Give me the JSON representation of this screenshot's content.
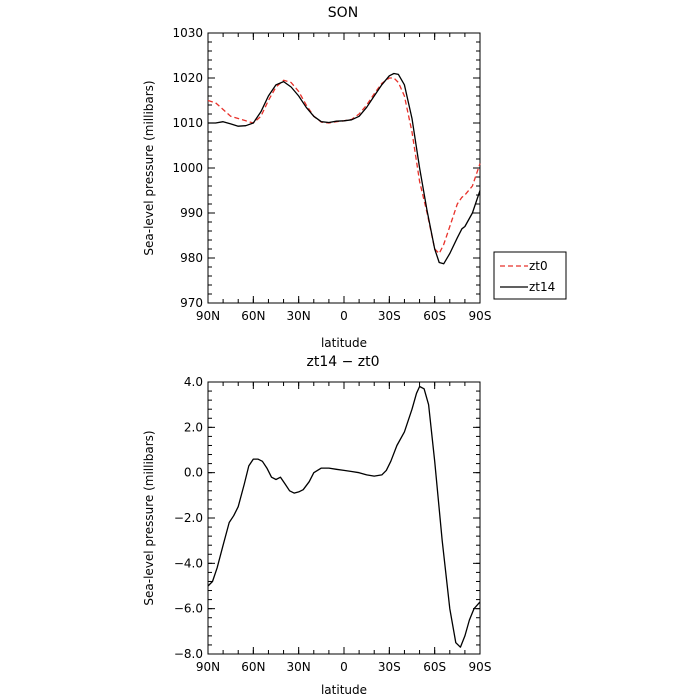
{
  "chart_data": [
    {
      "type": "line",
      "title": "SON",
      "xlabel": "latitude",
      "ylabel": "Sea-level pressure (millibars)",
      "xlim": [
        90,
        -90
      ],
      "ylim": [
        970,
        1030
      ],
      "x_tick_values": [
        90,
        60,
        30,
        0,
        -30,
        -60,
        -90
      ],
      "x_tick_labels": [
        "90N",
        "60N",
        "30N",
        "0",
        "30S",
        "60S",
        "90S"
      ],
      "y_ticks": [
        970,
        980,
        990,
        1000,
        1010,
        1020,
        1030
      ],
      "legend": "right",
      "series": [
        {
          "name": "zt0",
          "color": "#e8312a",
          "style": "dashed",
          "x": [
            90,
            85,
            80,
            75,
            70,
            65,
            60,
            55,
            50,
            45,
            40,
            35,
            30,
            25,
            20,
            15,
            10,
            5,
            0,
            -5,
            -10,
            -15,
            -20,
            -25,
            -30,
            -33,
            -36,
            -40,
            -45,
            -50,
            -55,
            -60,
            -63,
            -66,
            -70,
            -75,
            -78,
            -80,
            -85,
            -90
          ],
          "y": [
            1015,
            1014.5,
            1013,
            1011.5,
            1011,
            1010.5,
            1010,
            1011.5,
            1015,
            1018,
            1019.5,
            1019,
            1017,
            1014,
            1011.5,
            1010.2,
            1010,
            1010.3,
            1010.5,
            1010.8,
            1012,
            1014,
            1016.5,
            1018.8,
            1020,
            1020,
            1019,
            1016,
            1008,
            997,
            990,
            982,
            981,
            983,
            987,
            992,
            993.5,
            994,
            996,
            1001
          ]
        },
        {
          "name": "zt14",
          "color": "#000000",
          "style": "solid",
          "x": [
            90,
            85,
            80,
            75,
            70,
            65,
            60,
            55,
            50,
            45,
            40,
            35,
            30,
            25,
            20,
            15,
            10,
            5,
            0,
            -5,
            -10,
            -15,
            -20,
            -25,
            -30,
            -33,
            -36,
            -40,
            -45,
            -50,
            -55,
            -60,
            -63,
            -66,
            -70,
            -75,
            -78,
            -80,
            -85,
            -90
          ],
          "y": [
            1010,
            1010,
            1010.3,
            1009.8,
            1009.3,
            1009.4,
            1010,
            1012.5,
            1016,
            1018.5,
            1019.2,
            1018,
            1016,
            1013.5,
            1011.5,
            1010.3,
            1010.1,
            1010.4,
            1010.5,
            1010.7,
            1011.5,
            1013.5,
            1016,
            1018.5,
            1020.5,
            1021,
            1020.8,
            1018.5,
            1011,
            1000,
            990.5,
            982,
            979,
            978.7,
            981,
            984.5,
            986.5,
            987,
            990,
            995
          ]
        }
      ]
    },
    {
      "type": "line",
      "title": "zt14 − zt0",
      "xlabel": "latitude",
      "ylabel": "Sea-level pressure (millibars)",
      "xlim": [
        90,
        -90
      ],
      "ylim": [
        -8,
        4
      ],
      "x_tick_values": [
        90,
        60,
        30,
        0,
        -30,
        -60,
        -90
      ],
      "x_tick_labels": [
        "90N",
        "60N",
        "30N",
        "0",
        "30S",
        "60S",
        "90S"
      ],
      "y_ticks": [
        -8,
        -6,
        -4,
        -2,
        0,
        2,
        4
      ],
      "y_tick_labels": [
        "−8.0",
        "−6.0",
        "−4.0",
        "−2.0",
        "0.0",
        "2.0",
        "4.0"
      ],
      "series": [
        {
          "name": "",
          "color": "#000000",
          "style": "solid",
          "x": [
            90,
            87,
            84,
            80,
            76,
            73,
            70,
            66,
            63,
            60,
            57,
            54,
            51,
            48,
            45,
            42,
            39,
            36,
            33,
            30,
            27,
            23,
            20,
            15,
            10,
            5,
            0,
            -5,
            -10,
            -15,
            -20,
            -25,
            -28,
            -31,
            -35,
            -40,
            -45,
            -48,
            -50,
            -53,
            -56,
            -60,
            -65,
            -70,
            -74,
            -77,
            -80,
            -83,
            -86,
            -90
          ],
          "y": [
            -5,
            -4.8,
            -4.2,
            -3.2,
            -2.2,
            -1.9,
            -1.5,
            -0.5,
            0.3,
            0.6,
            0.6,
            0.5,
            0.2,
            -0.2,
            -0.3,
            -0.2,
            -0.5,
            -0.8,
            -0.9,
            -0.85,
            -0.75,
            -0.4,
            0,
            0.2,
            0.2,
            0.15,
            0.1,
            0.05,
            0,
            -0.1,
            -0.15,
            -0.1,
            0.1,
            0.5,
            1.2,
            1.8,
            2.8,
            3.5,
            3.8,
            3.7,
            3.0,
            0.5,
            -3.0,
            -6.0,
            -7.5,
            -7.7,
            -7.2,
            -6.5,
            -6.0,
            -5.7
          ]
        }
      ]
    }
  ],
  "legend_entries": [
    {
      "label": "zt0",
      "color": "#e8312a",
      "style": "dashed"
    },
    {
      "label": "zt14",
      "color": "#000000",
      "style": "solid"
    }
  ]
}
